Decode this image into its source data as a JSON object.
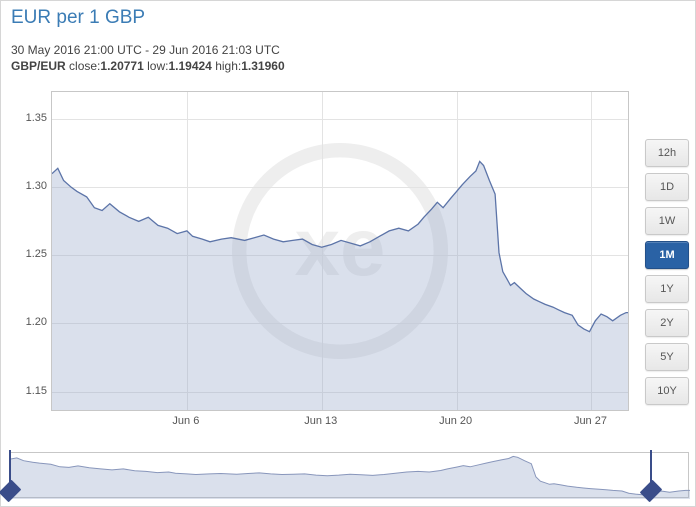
{
  "title": "EUR per 1 GBP",
  "date_range": "30 May 2016 21:00 UTC - 29 Jun 2016 21:03 UTC",
  "pair_label": "GBP/EUR",
  "close_label": "close:",
  "close_value": "1.20771",
  "low_label": "low:",
  "low_value": "1.19424",
  "high_label": "high:",
  "high_value": "1.31960",
  "chart": {
    "type": "area",
    "line_color": "#5c74a8",
    "area_color": "rgba(150,165,200,0.35)",
    "background_color": "#ffffff",
    "grid_color": "#e3e3e3",
    "border_color": "#c7c7c7",
    "ylim": [
      1.135,
      1.37
    ],
    "yticks": [
      1.15,
      1.2,
      1.25,
      1.3,
      1.35
    ],
    "ytick_labels": [
      "1.15",
      "1.20",
      "1.25",
      "1.30",
      "1.35"
    ],
    "xlim": [
      0,
      30
    ],
    "xticks": [
      7,
      14,
      21,
      28
    ],
    "xtick_labels": [
      "Jun 6",
      "Jun 13",
      "Jun 20",
      "Jun 27"
    ],
    "axis_label_fontsize": 11,
    "title_fontsize": 19,
    "title_color": "#3b7cb5",
    "series": [
      [
        0,
        1.31
      ],
      [
        0.3,
        1.314
      ],
      [
        0.6,
        1.305
      ],
      [
        1,
        1.3
      ],
      [
        1.3,
        1.297
      ],
      [
        1.8,
        1.293
      ],
      [
        2.2,
        1.285
      ],
      [
        2.6,
        1.283
      ],
      [
        3,
        1.288
      ],
      [
        3.5,
        1.282
      ],
      [
        4,
        1.278
      ],
      [
        4.5,
        1.275
      ],
      [
        5,
        1.278
      ],
      [
        5.5,
        1.272
      ],
      [
        6,
        1.27
      ],
      [
        6.5,
        1.266
      ],
      [
        7,
        1.268
      ],
      [
        7.3,
        1.264
      ],
      [
        7.8,
        1.262
      ],
      [
        8.2,
        1.26
      ],
      [
        8.8,
        1.262
      ],
      [
        9.3,
        1.263
      ],
      [
        10,
        1.261
      ],
      [
        10.5,
        1.263
      ],
      [
        11,
        1.265
      ],
      [
        11.5,
        1.262
      ],
      [
        12,
        1.26
      ],
      [
        12.5,
        1.261
      ],
      [
        13,
        1.262
      ],
      [
        13.5,
        1.258
      ],
      [
        14,
        1.256
      ],
      [
        14.5,
        1.258
      ],
      [
        15,
        1.261
      ],
      [
        15.5,
        1.259
      ],
      [
        16,
        1.257
      ],
      [
        16.5,
        1.26
      ],
      [
        17,
        1.264
      ],
      [
        17.5,
        1.268
      ],
      [
        18,
        1.27
      ],
      [
        18.5,
        1.268
      ],
      [
        19,
        1.273
      ],
      [
        19.3,
        1.278
      ],
      [
        19.7,
        1.284
      ],
      [
        20,
        1.289
      ],
      [
        20.3,
        1.285
      ],
      [
        20.7,
        1.292
      ],
      [
        21,
        1.297
      ],
      [
        21.3,
        1.302
      ],
      [
        21.7,
        1.308
      ],
      [
        22,
        1.312
      ],
      [
        22.2,
        1.319
      ],
      [
        22.4,
        1.316
      ],
      [
        22.7,
        1.305
      ],
      [
        23,
        1.295
      ],
      [
        23.2,
        1.252
      ],
      [
        23.4,
        1.238
      ],
      [
        23.6,
        1.233
      ],
      [
        23.8,
        1.228
      ],
      [
        24,
        1.23
      ],
      [
        24.3,
        1.226
      ],
      [
        24.6,
        1.222
      ],
      [
        25,
        1.218
      ],
      [
        25.3,
        1.216
      ],
      [
        25.6,
        1.214
      ],
      [
        26,
        1.212
      ],
      [
        26.3,
        1.21
      ],
      [
        26.6,
        1.208
      ],
      [
        27,
        1.206
      ],
      [
        27.3,
        1.199
      ],
      [
        27.6,
        1.196
      ],
      [
        27.9,
        1.194
      ],
      [
        28.2,
        1.202
      ],
      [
        28.5,
        1.207
      ],
      [
        28.8,
        1.205
      ],
      [
        29.1,
        1.202
      ],
      [
        29.5,
        1.206
      ],
      [
        29.8,
        1.208
      ],
      [
        30,
        1.208
      ]
    ]
  },
  "range_buttons": [
    {
      "label": "12h",
      "active": false
    },
    {
      "label": "1D",
      "active": false
    },
    {
      "label": "1W",
      "active": false
    },
    {
      "label": "1M",
      "active": true
    },
    {
      "label": "1Y",
      "active": false
    },
    {
      "label": "2Y",
      "active": false
    },
    {
      "label": "5Y",
      "active": false
    },
    {
      "label": "10Y",
      "active": false
    }
  ],
  "mini_chart": {
    "line_color": "#8896bb",
    "area_color": "rgba(150,165,200,0.35)",
    "handle_color": "#3a4d8a",
    "ylim": [
      1.18,
      1.33
    ],
    "series_ref": "chart.series",
    "left_handle_x": 0,
    "right_handle_x": 28.3
  }
}
